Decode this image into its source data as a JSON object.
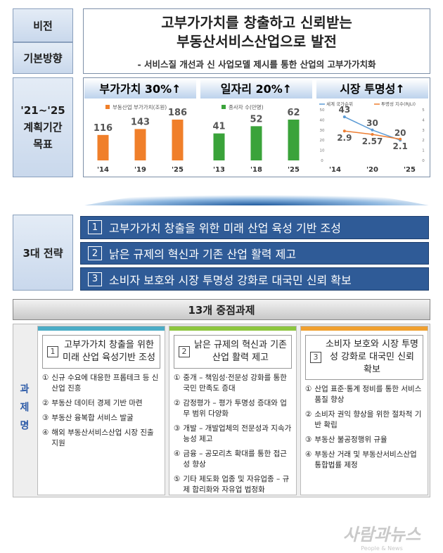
{
  "vision": {
    "label": "비전",
    "title": [
      "고부가가치를 창출하고 신뢰받는",
      "부동산서비스산업으로 발전"
    ]
  },
  "direction": {
    "label": "기본방향",
    "text": "- 서비스질 개선과 신 사업모델 제시를 통한 산업의 고부가가치화"
  },
  "targets": {
    "label": [
      "'21~'25",
      "계획기간",
      "목표"
    ],
    "charts": [
      {
        "type": "bar",
        "title": "부가가치 30%↑",
        "legend": "부동산업 부가가치(조원)",
        "color": "#f07f2a",
        "categories": [
          "'14",
          "'19",
          "'25"
        ],
        "values": [
          116,
          143,
          186
        ]
      },
      {
        "type": "bar",
        "title": "일자리 20%↑",
        "legend": "종사자 수(만명)",
        "color": "#3aa33a",
        "categories": [
          "'13",
          "'18",
          "'25"
        ],
        "values": [
          41,
          52,
          62
        ]
      },
      {
        "type": "line",
        "title": "시장 투명성↑",
        "categories": [
          "'14",
          "'20",
          "'25"
        ],
        "series": [
          {
            "name": "세계 국가순위",
            "color": "#5b9bd5",
            "values": [
              43,
              30,
              20
            ]
          },
          {
            "name": "투명성 지수(RJLI)",
            "color": "#ed7d31",
            "values": [
              2.9,
              2.57,
              2.1
            ],
            "axis": "y2"
          }
        ],
        "ylim": [
          0,
          50
        ],
        "yticks": [
          0,
          10,
          20,
          30,
          40,
          50
        ],
        "y2lim": [
          0,
          5
        ],
        "y2ticks": [
          0,
          1,
          2,
          3,
          4,
          5
        ]
      }
    ]
  },
  "strategies": {
    "label": "3대 전략",
    "items": [
      {
        "number": "1",
        "text": "고부가가치 창출을 위한 미래 산업 육성 기반 조성"
      },
      {
        "number": "2",
        "text": "낡은 규제의 혁신과 기존 산업 활력 제고"
      },
      {
        "number": "3",
        "text": "소비자 보호와 시장 투명성 강화로 대국민 신뢰 확보"
      }
    ]
  },
  "tasks": {
    "title": "13개 중점과제",
    "label": "과제명",
    "columns": [
      {
        "number": "1",
        "title": "고부가가치 창출을 위한 미래 산업 육성기반 조성",
        "color": "#4bacc6",
        "items": [
          {
            "marker": "①",
            "text": "신규 수요에 대응한 프롭테크 등 신산업 진흥"
          },
          {
            "marker": "②",
            "text": "부동산 데이터 경제 기반 마련"
          },
          {
            "marker": "③",
            "text": "부동산 융복합 서비스 발굴"
          },
          {
            "marker": "④",
            "text": "해외 부동산서비스산업 시장 진출 지원"
          }
        ]
      },
      {
        "number": "2",
        "title": "낡은 규제의 혁신과 기존 산업 활력 제고",
        "color": "#8dc63f",
        "items": [
          {
            "marker": "①",
            "text": "중개 – 책임성·전문성 강화를 통한 국민 만족도 증대"
          },
          {
            "marker": "②",
            "text": "감정평가 – 평가 투명성 증대와 업무 범위 다양화"
          },
          {
            "marker": "③",
            "text": "개발 – 개발업체의 전문성과 지속가능성 제고"
          },
          {
            "marker": "④",
            "text": "금융 – 공모리츠 확대를 통한 접근성 향상"
          },
          {
            "marker": "⑤",
            "text": "기타 제도화 업종 및 자유업종 – 규제 합리화와 자유업 법정화"
          }
        ]
      },
      {
        "number": "3",
        "title": "소비자 보호와 시장 투명성 강화로 대국민 신뢰 확보",
        "color": "#f0a030",
        "items": [
          {
            "marker": "①",
            "text": "산업 표준·통계 정비를 통한 서비스 품질 향상"
          },
          {
            "marker": "②",
            "text": "소비자 권익 향상을 위한 절차적 기반 확립"
          },
          {
            "marker": "③",
            "text": "부동산 불공정행위 규율"
          },
          {
            "marker": "④",
            "text": "부동산 거래 및 부동산서비스산업 통합법률 제정"
          }
        ]
      }
    ]
  },
  "watermark": {
    "text": "사람과뉴스",
    "subtitle": "People & News"
  }
}
